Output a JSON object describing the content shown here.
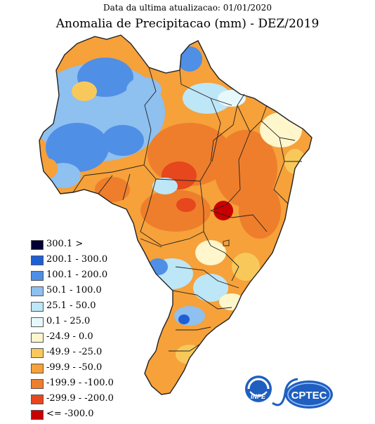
{
  "header": {
    "subtitle": "Data da ultima atualizacao: 01/01/2020",
    "title": "Anomalia de Precipitacao (mm) - DEZ/2019"
  },
  "legend": [
    {
      "label": "300.1 >",
      "color": "#000033"
    },
    {
      "label": "200.1 - 300.0",
      "color": "#1f5fd6"
    },
    {
      "label": "100.1 - 200.0",
      "color": "#4f8fe6"
    },
    {
      "label": "50.1 - 100.0",
      "color": "#8ec0f0"
    },
    {
      "label": "25.1 - 50.0",
      "color": "#bde6f7"
    },
    {
      "label": "0.1 - 25.0",
      "color": "#e6f8fb"
    },
    {
      "label": "-24.9 - 0.0",
      "color": "#fff6cc"
    },
    {
      "label": "-49.9 - -25.0",
      "color": "#f8c95a"
    },
    {
      "label": "-99.9 - -50.0",
      "color": "#f6a13a"
    },
    {
      "label": "-199.9 - -100.0",
      "color": "#ee7e2c"
    },
    {
      "label": "-299.9 - -200.0",
      "color": "#e6471d"
    },
    {
      "label": "<= -300.0",
      "color": "#c80000"
    }
  ],
  "logos": {
    "inpe": "INPE",
    "cptec": "CPTEC"
  }
}
